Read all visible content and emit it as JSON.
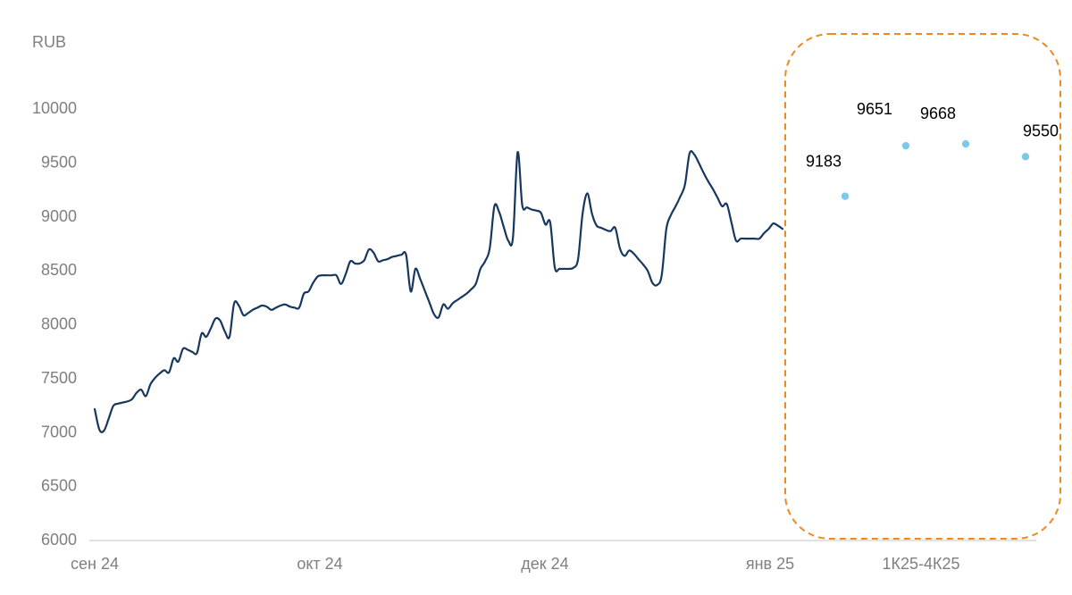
{
  "chart_data": {
    "type": "line",
    "ylabel": "RUB",
    "ylim": [
      6000,
      10000
    ],
    "y_ticks": [
      10000,
      9500,
      9000,
      8500,
      8000,
      7500,
      7000,
      6500,
      6000
    ],
    "x_labels": [
      "сен 24",
      "окт 24",
      "дек 24",
      "янв 25",
      "1К25-4К25"
    ],
    "grid": false,
    "colors": {
      "line": "#17375e",
      "forecast": "#7ec8e8",
      "highlight": "#f08a1c",
      "axis": "#d9d9d9"
    },
    "series": [
      {
        "values": [
          7210,
          7020,
          7010,
          7120,
          7240,
          7260,
          7270,
          7280,
          7300,
          7360,
          7390,
          7330,
          7440,
          7500,
          7540,
          7570,
          7550,
          7680,
          7650,
          7770,
          7760,
          7740,
          7730,
          7910,
          7880,
          7960,
          8050,
          8030,
          7930,
          7880,
          8190,
          8170,
          8080,
          8100,
          8130,
          8150,
          8170,
          8160,
          8130,
          8150,
          8170,
          8180,
          8160,
          8150,
          8150,
          8280,
          8300,
          8380,
          8440,
          8450,
          8450,
          8450,
          8450,
          8370,
          8460,
          8580,
          8560,
          8560,
          8590,
          8690,
          8660,
          8580,
          8590,
          8600,
          8620,
          8630,
          8640,
          8640,
          8300,
          8510,
          8420,
          8310,
          8200,
          8090,
          8060,
          8180,
          8140,
          8190,
          8220,
          8250,
          8280,
          8320,
          8370,
          8510,
          8580,
          8700,
          9090,
          9040,
          8900,
          8770,
          8800,
          9590,
          9100,
          9080,
          9060,
          9050,
          9030,
          8920,
          8940,
          8520,
          8510,
          8510,
          8510,
          8520,
          8600,
          9030,
          9210,
          9020,
          8910,
          8890,
          8870,
          8860,
          8890,
          8700,
          8630,
          8680,
          8650,
          8600,
          8550,
          8490,
          8380,
          8360,
          8450,
          8880,
          9010,
          9090,
          9180,
          9290,
          9580,
          9570,
          9490,
          9400,
          9320,
          9250,
          9170,
          9090,
          9110,
          8940,
          8770,
          8790,
          8790,
          8790,
          8790,
          8790,
          8840,
          8880,
          8930,
          8910,
          8880
        ]
      }
    ],
    "forecast_points": [
      {
        "period": "1К25",
        "value": 9183,
        "label": "9183"
      },
      {
        "period": "2К25",
        "value": 9651,
        "label": "9651"
      },
      {
        "period": "3К25",
        "value": 9668,
        "label": "9668"
      },
      {
        "period": "4К25",
        "value": 9550,
        "label": "9550"
      }
    ]
  }
}
